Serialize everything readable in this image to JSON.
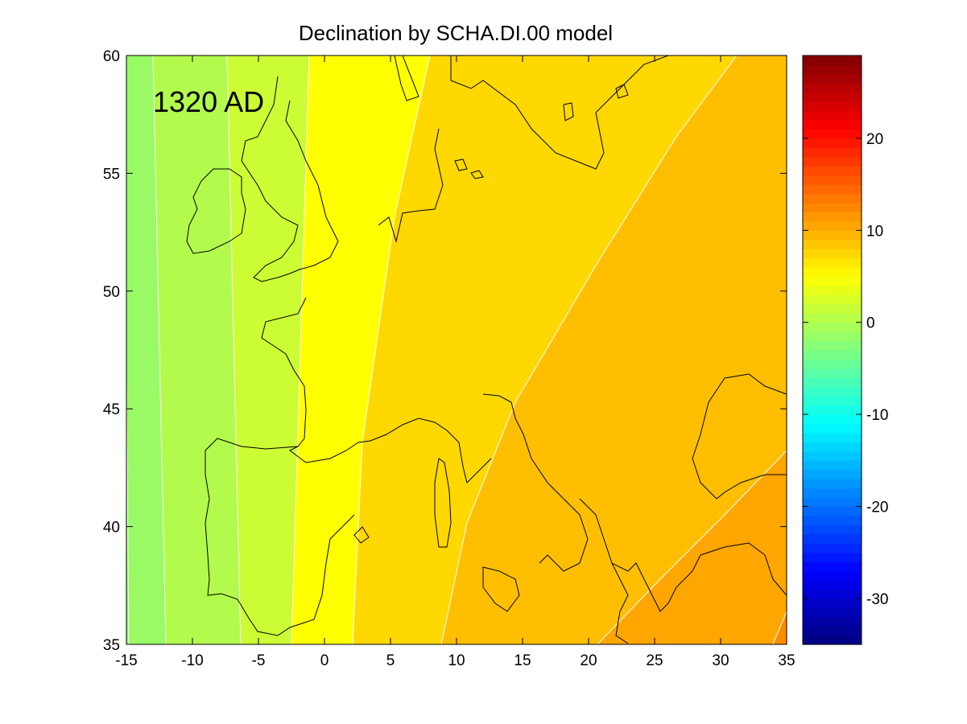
{
  "chart_data": {
    "type": "heatmap",
    "subtype": "filled-contour-map",
    "title": "Declination by SCHA.DI.00 model",
    "annotation": "1320 AD",
    "xlabel": "",
    "ylabel": "",
    "xlim": [
      -15,
      35
    ],
    "ylim": [
      35,
      60
    ],
    "x_ticks": [
      "-15",
      "-10",
      "-5",
      "0",
      "5",
      "10",
      "15",
      "20",
      "25",
      "30",
      "35"
    ],
    "y_ticks": [
      "35",
      "40",
      "45",
      "50",
      "55",
      "60"
    ],
    "colorbar": {
      "colormap": "jet",
      "range": [
        -35,
        29
      ],
      "ticks": [
        "20",
        "10",
        "0",
        "-10",
        "-20",
        "-30"
      ]
    },
    "contour_bands": [
      {
        "from": -4,
        "to": -2,
        "color": "#80f77f"
      },
      {
        "from": -2,
        "to": 0,
        "color": "#99fa66"
      },
      {
        "from": 0,
        "to": 2,
        "color": "#b2fb4d"
      },
      {
        "from": 2,
        "to": 4,
        "color": "#ccfc33"
      },
      {
        "from": 4,
        "to": 6,
        "color": "#ffff00"
      },
      {
        "from": 6,
        "to": 8,
        "color": "#ffd800"
      },
      {
        "from": 8,
        "to": 10,
        "color": "#ffbf00"
      },
      {
        "from": 10,
        "to": 12,
        "color": "#ffa600"
      },
      {
        "from": 12,
        "to": 14,
        "color": "#ff8c00"
      }
    ],
    "colors": {
      "contour_line": "#ffffff",
      "coastline": "#000000",
      "axis": "#000000"
    }
  }
}
